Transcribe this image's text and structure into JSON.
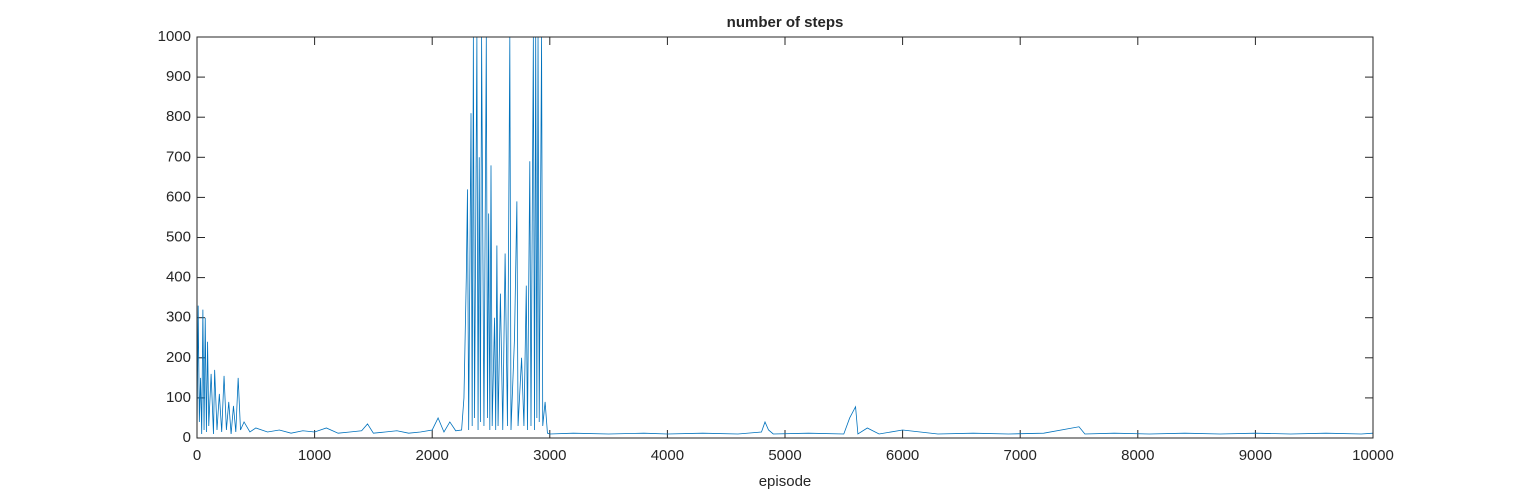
{
  "chart_data": {
    "type": "line",
    "title": "number of steps",
    "xlabel": "episode",
    "color": "#0072bd",
    "xlim": [
      0,
      10000
    ],
    "xticks": [
      0,
      1000,
      2000,
      3000,
      4000,
      5000,
      6000,
      7000,
      8000,
      9000,
      10000
    ],
    "ylim": [
      0,
      1000
    ],
    "yticks": [
      0,
      100,
      200,
      300,
      400,
      500,
      600,
      700,
      800,
      900,
      1000
    ],
    "grid": false,
    "x": [
      0,
      10,
      20,
      30,
      40,
      50,
      60,
      70,
      80,
      90,
      100,
      120,
      140,
      150,
      170,
      190,
      210,
      230,
      250,
      270,
      290,
      310,
      330,
      350,
      370,
      400,
      450,
      500,
      600,
      700,
      800,
      900,
      1000,
      1100,
      1200,
      1300,
      1400,
      1450,
      1500,
      1600,
      1700,
      1800,
      1900,
      2000,
      2050,
      2100,
      2150,
      2200,
      2250,
      2270,
      2290,
      2300,
      2310,
      2330,
      2340,
      2350,
      2360,
      2380,
      2390,
      2400,
      2410,
      2420,
      2440,
      2460,
      2470,
      2480,
      2490,
      2500,
      2510,
      2530,
      2540,
      2550,
      2560,
      2580,
      2600,
      2620,
      2640,
      2660,
      2670,
      2700,
      2720,
      2730,
      2760,
      2780,
      2800,
      2810,
      2830,
      2840,
      2860,
      2870,
      2880,
      2890,
      2900,
      2910,
      2930,
      2940,
      2960,
      2980,
      3000,
      3200,
      3500,
      3800,
      4000,
      4300,
      4600,
      4800,
      4830,
      4860,
      4900,
      5200,
      5500,
      5550,
      5600,
      5620,
      5700,
      5800,
      6000,
      6300,
      6600,
      6900,
      7200,
      7500,
      7550,
      7800,
      8100,
      8400,
      8700,
      9000,
      9300,
      9600,
      9900,
      10000
    ],
    "values": [
      5,
      330,
      40,
      150,
      10,
      320,
      20,
      300,
      15,
      240,
      30,
      160,
      10,
      170,
      20,
      110,
      15,
      155,
      20,
      90,
      10,
      80,
      15,
      150,
      20,
      40,
      15,
      25,
      15,
      20,
      12,
      18,
      15,
      25,
      12,
      15,
      18,
      35,
      12,
      15,
      18,
      12,
      15,
      20,
      50,
      15,
      40,
      18,
      20,
      100,
      400,
      620,
      20,
      810,
      30,
      1000,
      50,
      1000,
      20,
      700,
      40,
      1000,
      30,
      1000,
      50,
      560,
      20,
      680,
      30,
      300,
      20,
      480,
      30,
      360,
      20,
      460,
      30,
      1000,
      20,
      250,
      590,
      30,
      200,
      30,
      380,
      20,
      690,
      30,
      1000,
      20,
      1000,
      50,
      1000,
      40,
      1000,
      30,
      90,
      12,
      10,
      12,
      10,
      12,
      10,
      12,
      10,
      15,
      40,
      20,
      10,
      12,
      10,
      50,
      78,
      10,
      25,
      10,
      20,
      10,
      12,
      10,
      12,
      28,
      10,
      12,
      10,
      12,
      10,
      12,
      10,
      12,
      10,
      12
    ]
  }
}
